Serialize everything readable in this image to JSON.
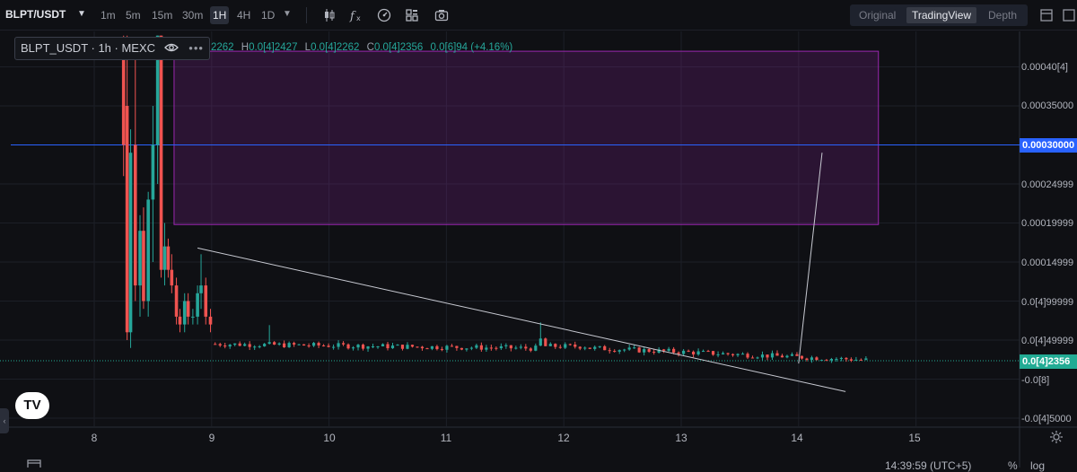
{
  "toolbar": {
    "symbol": "BLPT/USDT",
    "timeframes": [
      "1m",
      "5m",
      "15m",
      "30m",
      "1H",
      "4H",
      "1D"
    ],
    "active_timeframe": "1H",
    "tools": [
      "candle-type-icon",
      "indicators-icon",
      "compare-icon",
      "layout-grid-icon",
      "camera-icon"
    ],
    "views": [
      "Original",
      "TradingView",
      "Depth"
    ],
    "active_view": "TradingView"
  },
  "legend": {
    "title": "BLPT_USDT · 1h · MEXC",
    "ohlc_prefix": "2262",
    "h_label": "H",
    "h_value": "0.0[4]2427",
    "l_label": "L",
    "l_value": "0.0[4]2262",
    "c_label": "C",
    "c_value": "0.0[4]2356",
    "change": "0.0[6]94 (+4.16%)"
  },
  "price_axis": {
    "labels": [
      {
        "text": "0.00040[4]",
        "value": 0.0004
      },
      {
        "text": "0.00035000",
        "value": 0.00035
      },
      {
        "text": "0.00024999",
        "value": 0.00025
      },
      {
        "text": "0.00019999",
        "value": 0.0002
      },
      {
        "text": "0.00014999",
        "value": 0.00015
      },
      {
        "text": "0.0[4]99999",
        "value": 0.0001
      },
      {
        "text": "0.0[4]49999",
        "value": 5e-05
      },
      {
        "text": "-0.0[8]",
        "value": -1e-10
      },
      {
        "text": "-0.0[4]5000",
        "value": -5e-05
      }
    ],
    "horizontal_line_tag": "0.00030000",
    "last_price_tag": "0.0[4]2356"
  },
  "time_axis": {
    "labels": [
      "8",
      "9",
      "10",
      "11",
      "12",
      "13",
      "14",
      "15"
    ]
  },
  "status_bar": {
    "time": "14:39:59 (UTC+5)",
    "percent": "%",
    "log": "log"
  },
  "chart_data": {
    "type": "candlestick",
    "pair": "BLPT/USDT",
    "interval": "1h",
    "exchange": "MEXC",
    "x_range": [
      "8",
      "15"
    ],
    "y_range": [
      -5e-05,
      0.00043
    ],
    "horizontal_line": 0.0003,
    "last_price": 2.356e-05,
    "rectangle": {
      "x_from": 8.68,
      "x_to": 14.68,
      "y_from": 0.000198,
      "y_to": 0.00042
    },
    "trendline": {
      "from": [
        8.88,
        0.000168
      ],
      "to": [
        14.4,
        -1.6e-05
      ]
    },
    "ray_line": {
      "from": [
        14.0,
        2e-05
      ],
      "to": [
        14.2,
        0.00029
      ]
    },
    "colors": {
      "up": "#26a69a",
      "down": "#ef5350",
      "rect": "#9c27b0",
      "hline": "#2962ff",
      "tag": "#2962ff",
      "last": "#22ab94"
    }
  }
}
